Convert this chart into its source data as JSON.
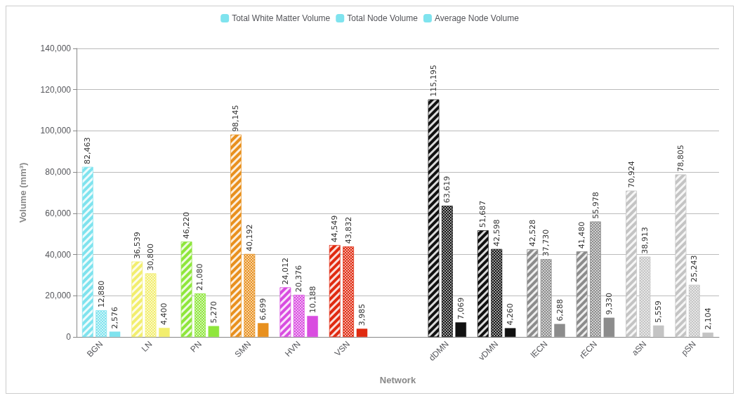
{
  "chart_data": {
    "type": "bar",
    "xlabel": "Network",
    "ylabel": "Volume (mm³)",
    "categories": [
      "BGN",
      "LN",
      "PN",
      "SMN",
      "HVN",
      "VSN",
      null,
      "dDMN",
      "vDMN",
      "lECN",
      "rECN",
      "aSN",
      "pSN"
    ],
    "series": [
      {
        "name": "Total White Matter Volume",
        "color": "#7fe3ee",
        "colors": [
          "#7fe3ee",
          "#f2ee6e",
          "#8fe63c",
          "#e8901e",
          "#d94ce0",
          "#e02a10",
          null,
          "#111111",
          "#111111",
          "#8c8c8c",
          "#8c8c8c",
          "#c4c4c4",
          "#c4c4c4"
        ],
        "values": [
          82463,
          36539,
          46220,
          98145,
          24012,
          44549,
          null,
          115195,
          51687,
          42528,
          41480,
          70924,
          78805
        ],
        "value_labels": [
          "82,463",
          "36,539",
          "46,220",
          "98,145",
          "24,012",
          "44,549",
          null,
          "115,195",
          "51,687",
          "42,528",
          "41,480",
          "70,924",
          "78,805"
        ]
      },
      {
        "name": "Total Node Volume",
        "color": "#7fe3ee",
        "colors": [
          "#7fe3ee",
          "#f2ee6e",
          "#8fe63c",
          "#e8901e",
          "#d94ce0",
          "#e02a10",
          null,
          "#111111",
          "#111111",
          "#8c8c8c",
          "#8c8c8c",
          "#c4c4c4",
          "#c4c4c4"
        ],
        "values": [
          12880,
          30800,
          21080,
          40192,
          20376,
          43832,
          null,
          63619,
          42598,
          37730,
          55978,
          38913,
          25243
        ],
        "value_labels": [
          "12,880",
          "30,800",
          "21,080",
          "40,192",
          "20,376",
          "43,832",
          null,
          "63,619",
          "42,598",
          "37,730",
          "55,978",
          "38,913",
          "25,243"
        ]
      },
      {
        "name": "Average Node Volume",
        "color": "#7fe3ee",
        "colors": [
          "#7fe3ee",
          "#f2ee6e",
          "#8fe63c",
          "#e8901e",
          "#d94ce0",
          "#e02a10",
          null,
          "#111111",
          "#111111",
          "#8c8c8c",
          "#8c8c8c",
          "#c4c4c4",
          "#c4c4c4"
        ],
        "values": [
          2576,
          4400,
          5270,
          6699,
          10188,
          3985,
          null,
          7069,
          4260,
          6288,
          9330,
          5559,
          2104
        ],
        "value_labels": [
          "2,576",
          "4,400",
          "5,270",
          "6,699",
          "10,188",
          "3,985",
          null,
          "7,069",
          "4,260",
          "6,288",
          "9,330",
          "5,559",
          "2,104"
        ]
      }
    ],
    "ylim": [
      0,
      140000
    ],
    "yticks": [
      {
        "value": 0,
        "label": "0"
      },
      {
        "value": 20000,
        "label": "20,000"
      },
      {
        "value": 40000,
        "label": "40,000"
      },
      {
        "value": 60000,
        "label": "60,000"
      },
      {
        "value": 80000,
        "label": "80,000"
      },
      {
        "value": 100000,
        "label": "100,000"
      },
      {
        "value": 120000,
        "label": "120,000"
      },
      {
        "value": 140000,
        "label": "140,000"
      }
    ],
    "grid": "y",
    "legend": "top"
  }
}
